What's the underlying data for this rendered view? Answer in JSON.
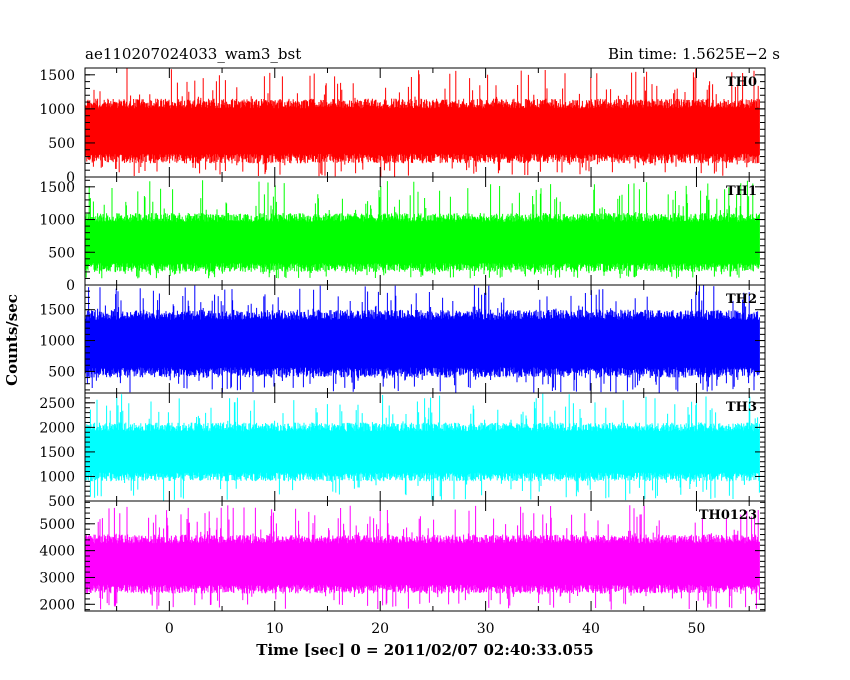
{
  "figure": {
    "title_left": "ae110207024033_wam3_bst",
    "title_right": "Bin time: 1.5625E−2 s",
    "xlabel": "Time [sec] 0 = 2011/02/07 02:40:33.055",
    "ylabel": "Counts/sec"
  },
  "chart_data": {
    "type": "line",
    "shared_x": {
      "range": [
        -8,
        56.5
      ],
      "ticks": [
        0,
        10,
        20,
        30,
        40,
        50
      ],
      "tick_labels": [
        "0",
        "10",
        "20",
        "30",
        "40",
        "50"
      ],
      "data_start": -8,
      "data_end": 56
    },
    "panels": [
      {
        "name": "TH0",
        "color": "#ff0000",
        "ylim": [
          0,
          1600
        ],
        "yticks": [
          0,
          500,
          1000,
          1500
        ],
        "ytick_labels": [
          "0",
          "500",
          "1000",
          "1500"
        ],
        "typical_low": 200,
        "typical_high": 1150,
        "peak_max": 1600,
        "min": 0
      },
      {
        "name": "TH1",
        "color": "#00ff00",
        "ylim": [
          0,
          1650
        ],
        "yticks": [
          0,
          500,
          1000,
          1500
        ],
        "ytick_labels": [
          "0",
          "500",
          "1000",
          "1500"
        ],
        "typical_low": 200,
        "typical_high": 1100,
        "peak_max": 1600,
        "min": 100
      },
      {
        "name": "TH2",
        "color": "#0000ff",
        "ylim": [
          150,
          1900
        ],
        "yticks": [
          500,
          1000,
          1500
        ],
        "ytick_labels": [
          "500",
          "1000",
          "1500"
        ],
        "typical_low": 400,
        "typical_high": 1500,
        "peak_max": 1900,
        "min": 150
      },
      {
        "name": "TH3",
        "color": "#00ffff",
        "ylim": [
          500,
          2700
        ],
        "yticks": [
          500,
          1000,
          1500,
          2000,
          2500
        ],
        "ytick_labels": [
          "500",
          "1000",
          "1500",
          "2000",
          "2500"
        ],
        "typical_low": 900,
        "typical_high": 2100,
        "peak_max": 2700,
        "min": 500
      },
      {
        "name": "TH0123",
        "color": "#ff00ff",
        "ylim": [
          1750,
          5850
        ],
        "yticks": [
          2000,
          3000,
          4000,
          5000
        ],
        "ytick_labels": [
          "2000",
          "3000",
          "4000",
          "5000"
        ],
        "typical_low": 2400,
        "typical_high": 4600,
        "peak_max": 5700,
        "min": 1800
      }
    ]
  }
}
